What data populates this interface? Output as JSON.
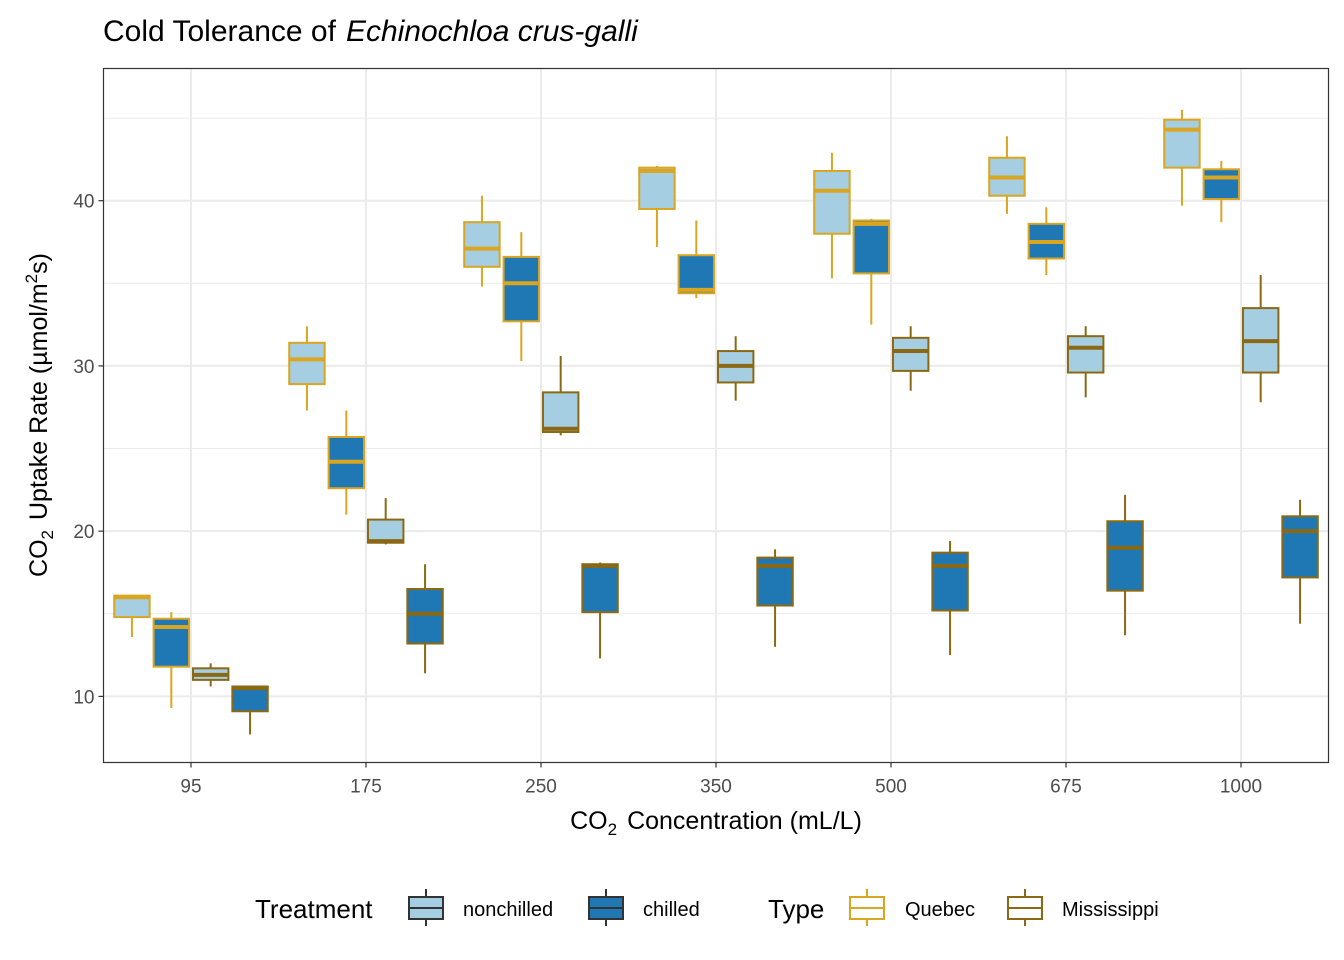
{
  "chart_data": {
    "type": "box",
    "title_prefix": "Cold Tolerance of",
    "title_species": "Echinochloa crus-galli",
    "xlabel_main": "CO",
    "xlabel_sub": "2",
    "xlabel_rest": "Concentration (mL/L)",
    "ylabel_main": "CO",
    "ylabel_sub": "2",
    "ylabel_rest": "Uptake Rate (µmol/m",
    "ylabel_sup": "2",
    "ylabel_end": "s)",
    "categories": [
      "95",
      "175",
      "250",
      "350",
      "500",
      "675",
      "1000"
    ],
    "y_ticks": [
      10,
      20,
      30,
      40
    ],
    "ylim": [
      6,
      48
    ],
    "grid": true,
    "legend_position": "bottom",
    "groups": [
      {
        "type": "Quebec",
        "treatment": "nonchilled",
        "boxes": [
          {
            "min": 13.6,
            "q1": 14.8,
            "median": 16.0,
            "q3": 16.1,
            "max": 16.1
          },
          {
            "min": 27.3,
            "q1": 28.9,
            "median": 30.4,
            "q3": 31.4,
            "max": 32.4
          },
          {
            "min": 34.8,
            "q1": 36.0,
            "median": 37.1,
            "q3": 38.7,
            "max": 40.3
          },
          {
            "min": 37.2,
            "q1": 39.5,
            "median": 41.8,
            "q3": 42.0,
            "max": 42.1
          },
          {
            "min": 35.3,
            "q1": 38.0,
            "median": 40.6,
            "q3": 41.8,
            "max": 42.9
          },
          {
            "min": 39.2,
            "q1": 40.3,
            "median": 41.4,
            "q3": 42.6,
            "max": 43.9
          },
          {
            "min": 39.7,
            "q1": 42.0,
            "median": 44.3,
            "q3": 44.9,
            "max": 45.5
          }
        ]
      },
      {
        "type": "Quebec",
        "treatment": "chilled",
        "boxes": [
          {
            "min": 9.3,
            "q1": 11.8,
            "median": 14.2,
            "q3": 14.7,
            "max": 15.1
          },
          {
            "min": 21.0,
            "q1": 22.6,
            "median": 24.2,
            "q3": 25.7,
            "max": 27.3
          },
          {
            "min": 30.3,
            "q1": 32.7,
            "median": 35.0,
            "q3": 36.6,
            "max": 38.1
          },
          {
            "min": 34.1,
            "q1": 34.4,
            "median": 34.6,
            "q3": 36.7,
            "max": 38.8
          },
          {
            "min": 32.5,
            "q1": 35.6,
            "median": 38.6,
            "q3": 38.8,
            "max": 38.9
          },
          {
            "min": 35.5,
            "q1": 36.5,
            "median": 37.5,
            "q3": 38.6,
            "max": 39.6
          },
          {
            "min": 38.7,
            "q1": 40.1,
            "median": 41.4,
            "q3": 41.9,
            "max": 42.4
          }
        ]
      },
      {
        "type": "Mississippi",
        "treatment": "nonchilled",
        "boxes": [
          {
            "min": 10.6,
            "q1": 11.0,
            "median": 11.3,
            "q3": 11.7,
            "max": 12.0
          },
          {
            "min": 19.2,
            "q1": 19.3,
            "median": 19.4,
            "q3": 20.7,
            "max": 22.0
          },
          {
            "min": 25.8,
            "q1": 26.0,
            "median": 26.2,
            "q3": 28.4,
            "max": 30.6
          },
          {
            "min": 27.9,
            "q1": 29.0,
            "median": 30.0,
            "q3": 30.9,
            "max": 31.8
          },
          {
            "min": 28.5,
            "q1": 29.7,
            "median": 30.9,
            "q3": 31.7,
            "max": 32.4
          },
          {
            "min": 28.1,
            "q1": 29.6,
            "median": 31.1,
            "q3": 31.8,
            "max": 32.4
          },
          {
            "min": 27.8,
            "q1": 29.6,
            "median": 31.5,
            "q3": 33.5,
            "max": 35.5
          }
        ]
      },
      {
        "type": "Mississippi",
        "treatment": "chilled",
        "boxes": [
          {
            "min": 7.7,
            "q1": 9.1,
            "median": 10.5,
            "q3": 10.6,
            "max": 10.6
          },
          {
            "min": 11.4,
            "q1": 13.2,
            "median": 15.0,
            "q3": 16.5,
            "max": 18.0
          },
          {
            "min": 12.3,
            "q1": 15.1,
            "median": 17.9,
            "q3": 18.0,
            "max": 18.1
          },
          {
            "min": 13.0,
            "q1": 15.5,
            "median": 17.9,
            "q3": 18.4,
            "max": 18.9
          },
          {
            "min": 12.5,
            "q1": 15.2,
            "median": 17.9,
            "q3": 18.7,
            "max": 19.4
          },
          {
            "min": 13.7,
            "q1": 16.4,
            "median": 19.0,
            "q3": 20.6,
            "max": 22.2
          },
          {
            "min": 14.4,
            "q1": 17.2,
            "median": 20.0,
            "q3": 20.9,
            "max": 21.9
          }
        ]
      }
    ],
    "legend": {
      "treatment_title": "Treatment",
      "treatment_items": [
        {
          "label": "nonchilled",
          "fill": "#a6cee3"
        },
        {
          "label": "chilled",
          "fill": "#1f78b4"
        }
      ],
      "type_title": "Type",
      "type_items": [
        {
          "label": "Quebec",
          "color": "#daa520"
        },
        {
          "label": "Mississippi",
          "color": "#8b6914"
        }
      ]
    },
    "colors": {
      "nonchilled_fill": "#a6cee3",
      "chilled_fill": "#1f78b4",
      "quebec_line": "#daa520",
      "mississippi_line": "#8b6914",
      "grid": "#ebebeb",
      "panel_border": "#333333"
    }
  }
}
